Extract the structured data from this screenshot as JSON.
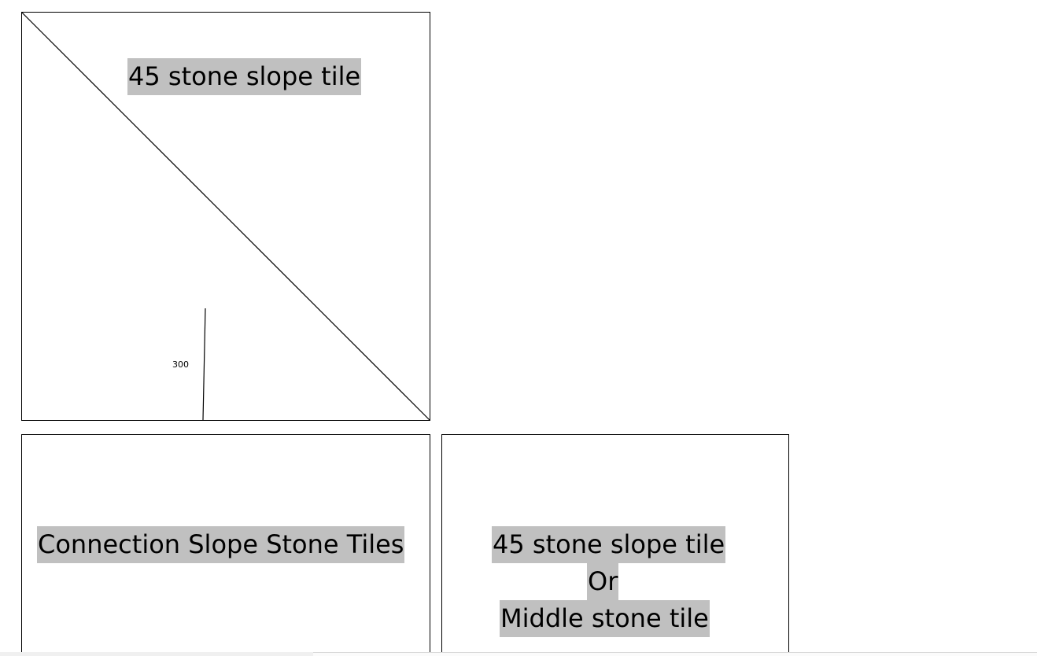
{
  "top_tile": {
    "label": "45 stone slope tile",
    "dimension": "300"
  },
  "connection_tile": {
    "label": "Connection Slope Stone Tiles"
  },
  "alternative_tile": {
    "line1": "45 stone slope tile",
    "line2": "Or",
    "line3": "Middle stone tile"
  },
  "colors": {
    "label_highlight": "#c0c0c0",
    "outline": "#000000",
    "background": "#ffffff"
  }
}
